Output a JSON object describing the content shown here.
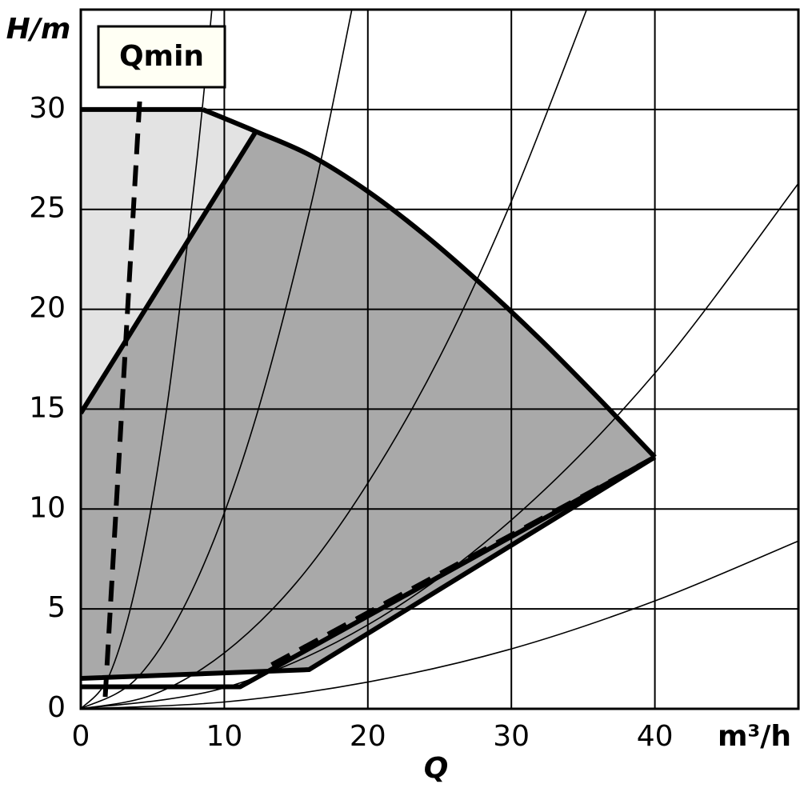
{
  "chart_data": {
    "type": "line",
    "y_label": "H/m",
    "x_label": "Q",
    "x_unit": "m³/h",
    "annotation": "Qmin",
    "xlim": [
      0,
      50
    ],
    "ylim": [
      0,
      35
    ],
    "xticks": [
      0,
      10,
      20,
      30,
      40
    ],
    "yticks": [
      0,
      5,
      10,
      15,
      20,
      25,
      30
    ],
    "grid": true,
    "areas": [
      {
        "color": "#e3e3e3",
        "x": [
          0,
          8.5,
          12.2,
          0
        ],
        "values": [
          30,
          30,
          28.9,
          14.8
        ]
      },
      {
        "color": "#a9a9a9",
        "x": [
          0,
          12.2,
          16,
          20,
          24,
          28,
          32,
          36,
          40,
          15.9,
          0
        ],
        "values": [
          14.8,
          28.9,
          27.7,
          25.9,
          23.7,
          21.2,
          18.5,
          15.6,
          12.6,
          1.96,
          1.52
        ]
      }
    ],
    "series": [
      {
        "color": "#000000",
        "weight": "thin",
        "smooth": true,
        "x": [
          0,
          2,
          4,
          6,
          8,
          9.2
        ],
        "values": [
          0,
          1.7,
          6.7,
          15.1,
          26.9,
          35.5
        ]
      },
      {
        "color": "#000000",
        "weight": "thin",
        "smooth": true,
        "x": [
          0,
          4,
          8,
          12,
          16,
          19
        ],
        "values": [
          0,
          1.6,
          6.3,
          14.1,
          25.1,
          35.4
        ]
      },
      {
        "color": "#000000",
        "weight": "thin",
        "smooth": true,
        "x": [
          0,
          5,
          10,
          15,
          20,
          25,
          30,
          35.3
        ],
        "values": [
          0,
          0.7,
          2.8,
          6.3,
          11.3,
          17.6,
          25.4,
          35.1
        ]
      },
      {
        "color": "#000000",
        "weight": "thin",
        "smooth": true,
        "x": [
          0,
          10,
          20,
          30,
          40,
          50
        ],
        "values": [
          0,
          1.05,
          4.2,
          9.45,
          16.8,
          26.3
        ]
      },
      {
        "color": "#000000",
        "weight": "thin",
        "smooth": true,
        "x": [
          0,
          10,
          20,
          30,
          40,
          50
        ],
        "values": [
          0,
          0.34,
          1.34,
          3.0,
          5.4,
          8.4
        ]
      },
      {
        "color": "#000000",
        "weight": "thick",
        "smooth": false,
        "x": [
          0,
          8.5
        ],
        "values": [
          30,
          30
        ]
      },
      {
        "color": "#000000",
        "weight": "thick",
        "smooth": true,
        "x": [
          8.5,
          12.2,
          16,
          20,
          24,
          28,
          32,
          36,
          40
        ],
        "values": [
          30,
          28.9,
          27.7,
          25.9,
          23.7,
          21.2,
          18.5,
          15.6,
          12.6
        ]
      },
      {
        "color": "#000000",
        "weight": "thick",
        "smooth": false,
        "x": [
          0,
          12.2
        ],
        "values": [
          14.8,
          28.9
        ]
      },
      {
        "color": "#000000",
        "weight": "thick",
        "smooth": false,
        "x": [
          40,
          15.9,
          0
        ],
        "values": [
          12.6,
          1.96,
          1.52
        ]
      },
      {
        "color": "#000000",
        "weight": "thick",
        "smooth": false,
        "x": [
          0,
          11.1,
          40
        ],
        "values": [
          1.1,
          1.1,
          12.6
        ]
      },
      {
        "color": "#000000",
        "weight": "thick",
        "smooth": false,
        "dashed": true,
        "x": [
          13.3,
          40
        ],
        "values": [
          2.2,
          12.6
        ]
      },
      {
        "color": "#000000",
        "weight": "thick",
        "smooth": false,
        "dashed": true,
        "x": [
          4.1,
          1.7
        ],
        "values": [
          30.4,
          0.6
        ]
      }
    ]
  }
}
